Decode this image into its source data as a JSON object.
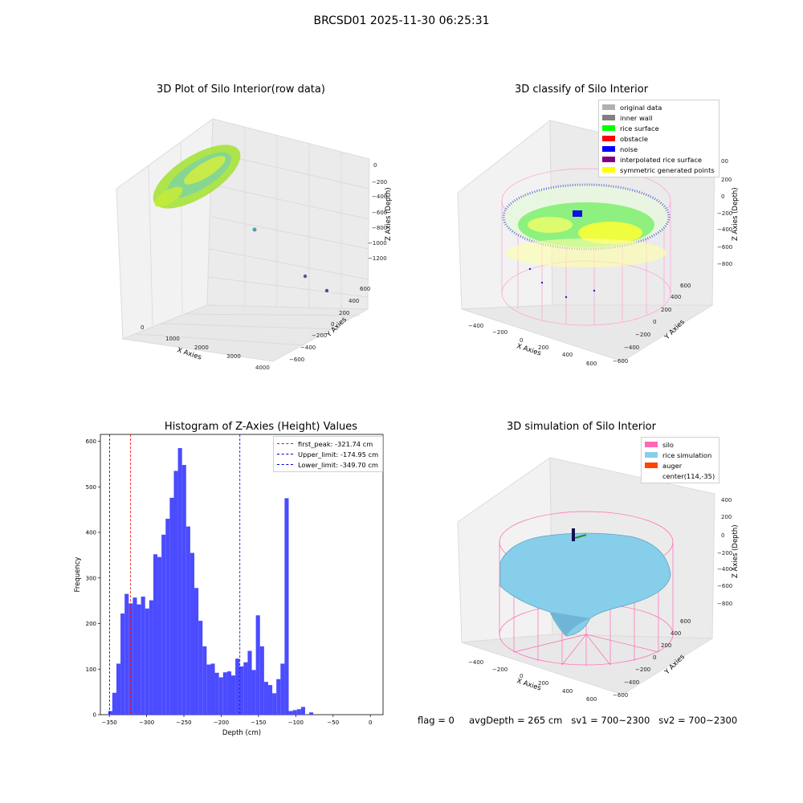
{
  "suptitle": "BRCSD01 2025-11-30 06:25:31",
  "footer": "flag = 0     avgDepth = 265 cm   sv1 = 700~2300   sv2 = 700~2300",
  "colors": {
    "hist_bar": "#4b4bff",
    "first_peak": "#ff0000",
    "limits": "#0000cc",
    "silo": "#ff69b4",
    "rice": "#87ceeb",
    "grid_pane": "#f2f2f2"
  },
  "plot1": {
    "title": "3D Plot of Silo Interior(row data)",
    "xlabel": "X Axies",
    "ylabel": "Y Axies",
    "zlabel": "Z Axies (Depth)",
    "xticks": [
      "0",
      "1000",
      "2000",
      "3000",
      "4000"
    ],
    "yticks": [
      "600",
      "400",
      "200",
      "0",
      "−200",
      "−400",
      "−600"
    ],
    "zticks": [
      "0",
      "−200",
      "−400",
      "−600",
      "−800",
      "−1000",
      "−1200"
    ]
  },
  "plot2": {
    "title": "3D classify of Silo Interior",
    "xlabel": "X Axies",
    "ylabel": "Y Axies",
    "zlabel": "Z Axies (Depth)",
    "xticks": [
      "−400",
      "−200",
      "0",
      "200",
      "400",
      "600"
    ],
    "yticks": [
      "600",
      "400",
      "200",
      "0",
      "−200",
      "−400",
      "−600"
    ],
    "zticks": [
      "200",
      "0",
      "−200",
      "−400",
      "−600",
      "−800"
    ],
    "ztick_top": "00",
    "legend": [
      {
        "label": "original data",
        "color": "#b0b0b0"
      },
      {
        "label": "inner wall",
        "color": "#808080"
      },
      {
        "label": "rice surface",
        "color": "#00ff00"
      },
      {
        "label": "obstacle",
        "color": "#ff0000"
      },
      {
        "label": "noise",
        "color": "#0000ff"
      },
      {
        "label": "interpolated rice surface",
        "color": "#800080"
      },
      {
        "label": "symmetric generated points",
        "color": "#ffff00"
      }
    ]
  },
  "plot4": {
    "title": "3D simulation of Silo Interior",
    "xlabel": "X Axies",
    "ylabel": "Y Axies",
    "zlabel": "Z Axies (Depth)",
    "xticks": [
      "−400",
      "−200",
      "0",
      "200",
      "400",
      "600"
    ],
    "yticks": [
      "600",
      "400",
      "200",
      "0",
      "−200",
      "−400",
      "−600"
    ],
    "zticks": [
      "400",
      "200",
      "0",
      "−200",
      "−400",
      "−600",
      "−800"
    ],
    "legend": [
      {
        "label": "silo",
        "color": "#ff69b4"
      },
      {
        "label": "rice simulation",
        "color": "#87ceeb"
      },
      {
        "label": "auger",
        "color": "#ff4500"
      },
      {
        "label": "center(114,-35)",
        "color": ""
      }
    ]
  },
  "chart_data": {
    "type": "bar",
    "title": "Histogram of Z-Axies (Height) Values",
    "xlabel": "Depth (cm)",
    "ylabel": "Frequency",
    "xlim": [
      -362,
      17
    ],
    "ylim": [
      0,
      615
    ],
    "xticks": [
      -350,
      -300,
      -250,
      -200,
      -150,
      -100,
      -50,
      0
    ],
    "xtick_labels": [
      "−350",
      "−300",
      "−250",
      "−200",
      "−150",
      "−100",
      "−50",
      "0"
    ],
    "yticks": [
      0,
      100,
      200,
      300,
      400,
      500,
      600
    ],
    "bin_width": 5.5,
    "bin_starts": [
      -351.5,
      -346,
      -340.5,
      -335,
      -329.5,
      -324,
      -318.5,
      -313,
      -307.5,
      -302,
      -296.5,
      -291,
      -285.5,
      -280,
      -274.5,
      -269,
      -263.5,
      -258,
      -252.5,
      -247,
      -241.5,
      -236,
      -230.5,
      -225,
      -219.5,
      -214,
      -208.5,
      -203,
      -197.5,
      -192,
      -186.5,
      -181,
      -175.5,
      -170,
      -164.5,
      -159,
      -153.5,
      -148,
      -142.5,
      -137,
      -131.5,
      -126,
      -120.5,
      -115,
      -109.5,
      -104,
      -98.5,
      -93,
      -87.5,
      -82,
      -76.5,
      -71,
      -65.5,
      -60,
      -54.5,
      -49,
      -43.5,
      -38,
      -32.5,
      -27,
      -21.5,
      -16,
      -10.5,
      -5,
      0.5
    ],
    "values": [
      8,
      48,
      112,
      222,
      265,
      244,
      257,
      242,
      259,
      233,
      251,
      352,
      346,
      395,
      430,
      476,
      535,
      585,
      548,
      413,
      355,
      278,
      206,
      150,
      110,
      112,
      92,
      82,
      93,
      95,
      86,
      123,
      106,
      115,
      140,
      98,
      218,
      150,
      72,
      65,
      47,
      78,
      112,
      475,
      8,
      10,
      12,
      17,
      0,
      5,
      0,
      0,
      0,
      0,
      0,
      0,
      0,
      0,
      0,
      0,
      0,
      0,
      0,
      0,
      0
    ],
    "lines": [
      {
        "label": "first_peak: -321.74 cm",
        "x": -321.74,
        "color": "#ff0000"
      },
      {
        "label": "Upper_limit: -174.95 cm",
        "x": -174.95,
        "color": "#0000cc"
      },
      {
        "label": "Lower_limit: -349.70 cm",
        "x": -349.7,
        "color": "#0000cc"
      }
    ]
  }
}
